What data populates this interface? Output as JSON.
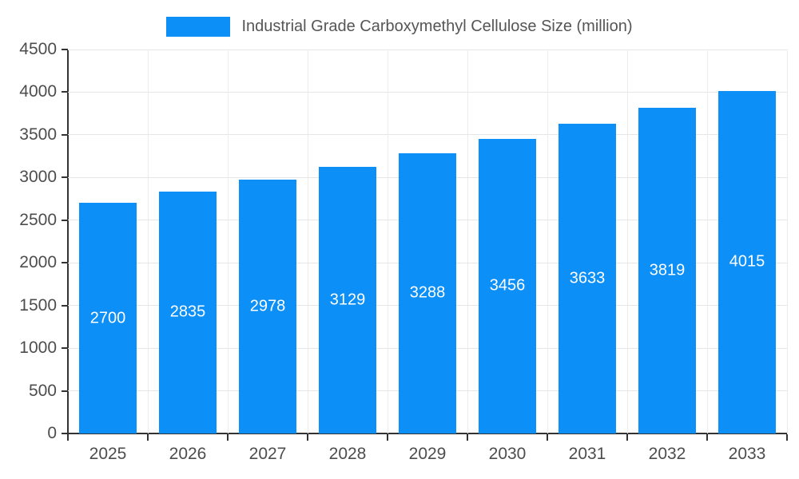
{
  "legend": {
    "title": "Industrial Grade Carboxymethyl Cellulose Size (million)",
    "swatch_color": "#0d8ff8"
  },
  "chart_data": {
    "type": "bar",
    "title": "Industrial Grade Carboxymethyl Cellulose Size (million)",
    "categories": [
      "2025",
      "2026",
      "2027",
      "2028",
      "2029",
      "2030",
      "2031",
      "2032",
      "2033"
    ],
    "values": [
      2700,
      2835,
      2978,
      3129,
      3288,
      3456,
      3633,
      3819,
      4015
    ],
    "xlabel": "",
    "ylabel": "",
    "ylim": [
      0,
      4500
    ],
    "y_ticks": [
      0,
      500,
      1000,
      1500,
      2000,
      2500,
      3000,
      3500,
      4000,
      4500
    ],
    "bar_color": "#0d8ff8",
    "value_label_color": "#ffffff",
    "grid": true,
    "legend_position": "top"
  }
}
